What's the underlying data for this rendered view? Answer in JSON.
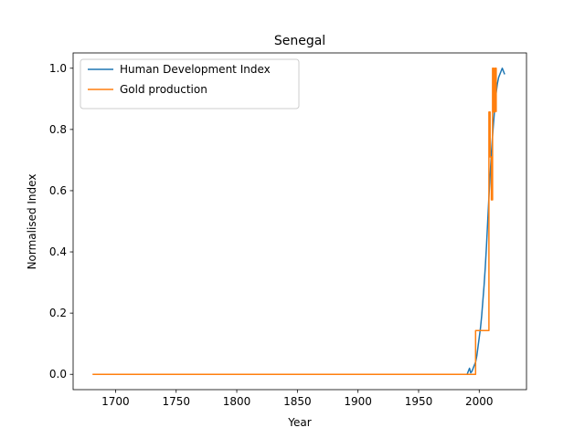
{
  "chart_data": {
    "type": "line",
    "title": "Senegal",
    "xlabel": "Year",
    "ylabel": "Normalised Index",
    "xlim": [
      1665,
      2039
    ],
    "ylim": [
      -0.05,
      1.05
    ],
    "xticks": [
      1700,
      1750,
      1800,
      1850,
      1900,
      1950,
      2000
    ],
    "yticks": [
      0.0,
      0.2,
      0.4,
      0.6,
      0.8,
      1.0
    ],
    "xtick_labels": [
      "1700",
      "1750",
      "1800",
      "1850",
      "1900",
      "1950",
      "2000"
    ],
    "ytick_labels": [
      "0.0",
      "0.2",
      "0.4",
      "0.6",
      "0.8",
      "1.0"
    ],
    "grid": false,
    "legend_position": "upper left",
    "series": [
      {
        "name": "Human Development Index",
        "color": "#1f77b4",
        "step": false,
        "x": [
          1990,
          1991,
          1992,
          1993,
          1994,
          1995,
          1996,
          1997,
          1998,
          1999,
          2000,
          2001,
          2002,
          2003,
          2004,
          2005,
          2006,
          2007,
          2008,
          2009,
          2010,
          2011,
          2012,
          2013,
          2014,
          2015,
          2016,
          2017,
          2018,
          2019,
          2020,
          2021
        ],
        "y": [
          0.0,
          0.01,
          0.02,
          0.005,
          0.01,
          0.02,
          0.03,
          0.04,
          0.06,
          0.09,
          0.12,
          0.15,
          0.19,
          0.24,
          0.29,
          0.35,
          0.42,
          0.5,
          0.58,
          0.65,
          0.72,
          0.78,
          0.83,
          0.88,
          0.92,
          0.95,
          0.97,
          0.98,
          0.99,
          1.0,
          0.99,
          0.98
        ]
      },
      {
        "name": "Gold production",
        "color": "#ff7f0e",
        "step": true,
        "x": [
          1681,
          1997,
          1997,
          2008,
          2008,
          2009,
          2010,
          2011,
          2012,
          2013,
          2014
        ],
        "y": [
          0.0,
          0.0,
          0.143,
          0.143,
          0.857,
          0.71,
          0.57,
          1.0,
          0.857,
          1.0,
          0.857
        ]
      }
    ]
  }
}
